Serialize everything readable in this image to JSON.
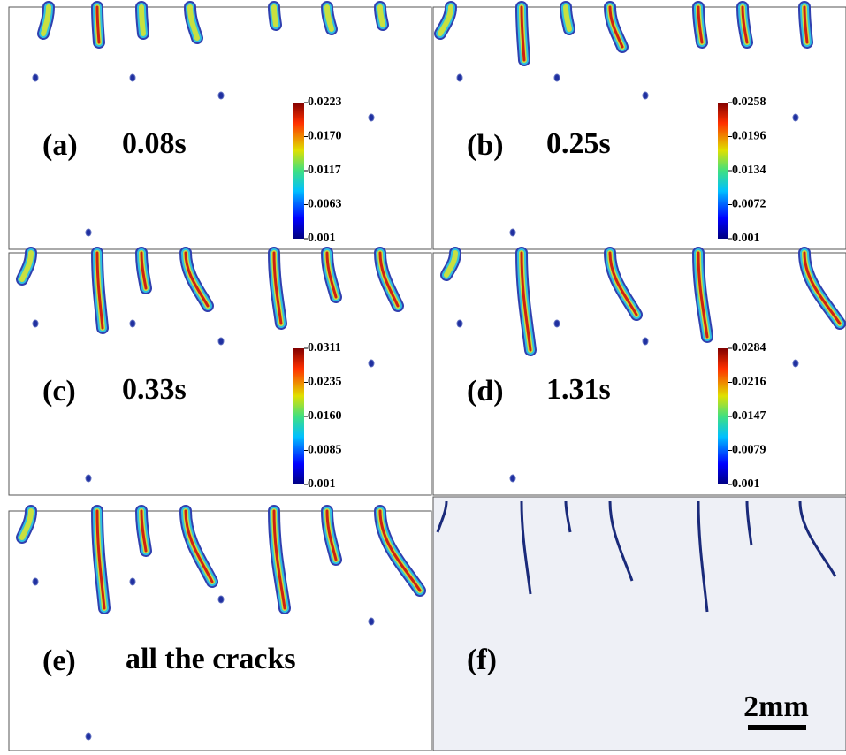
{
  "panels": [
    {
      "label": "(a)",
      "caption": "0.08s",
      "colorbar": [
        "0.0223",
        "0.0170",
        "0.0117",
        "0.0063",
        "0.001"
      ]
    },
    {
      "label": "(b)",
      "caption": "0.25s",
      "colorbar": [
        "0.0258",
        "0.0196",
        "0.0134",
        "0.0072",
        "0.001"
      ]
    },
    {
      "label": "(c)",
      "caption": "0.33s",
      "colorbar": [
        "0.0311",
        "0.0235",
        "0.0160",
        "0.0085",
        "0.001"
      ]
    },
    {
      "label": "(d)",
      "caption": "1.31s",
      "colorbar": [
        "0.0284",
        "0.0216",
        "0.0147",
        "0.0079",
        "0.001"
      ]
    },
    {
      "label": "(e)",
      "caption": "all the cracks"
    },
    {
      "label": "(f)",
      "scale_bar": "2mm"
    }
  ]
}
